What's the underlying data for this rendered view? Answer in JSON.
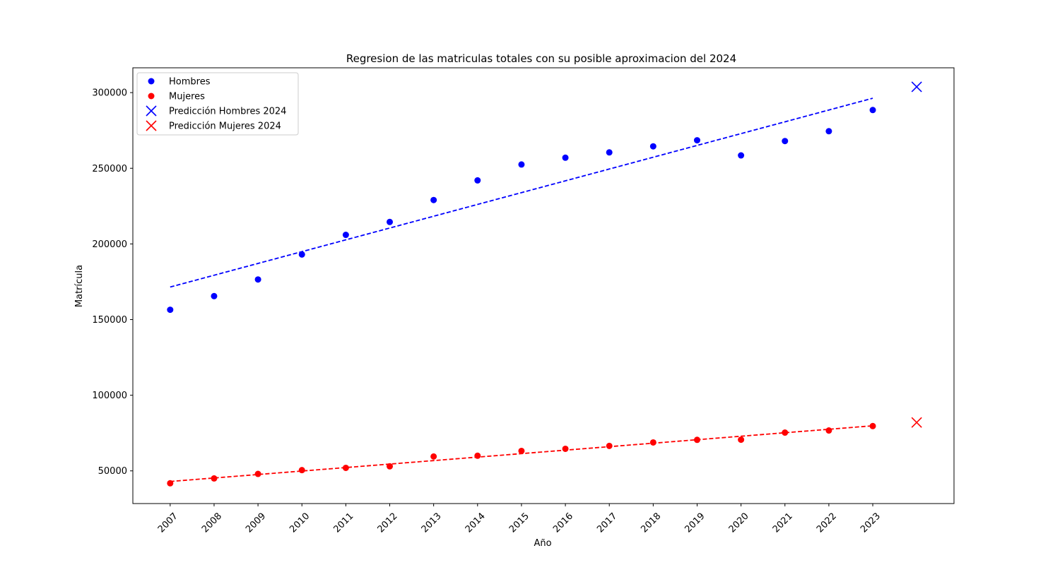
{
  "chart_data": {
    "type": "scatter",
    "title": "Regresion de las matriculas totales con su posible aproximacion del 2024",
    "xlabel": "Año",
    "ylabel": "Matrícula",
    "x_ticks": [
      "2007",
      "2008",
      "2009",
      "2010",
      "2011",
      "2012",
      "2013",
      "2014",
      "2015",
      "2016",
      "2017",
      "2018",
      "2019",
      "2020",
      "2021",
      "2022",
      "2023"
    ],
    "y_ticks": [
      50000,
      100000,
      150000,
      200000,
      250000,
      300000
    ],
    "xlim": [
      2006.15,
      2024.85
    ],
    "ylim": [
      28400,
      316400
    ],
    "grid": false,
    "legend_position": "top-left",
    "x": [
      2007,
      2008,
      2009,
      2010,
      2011,
      2012,
      2013,
      2014,
      2015,
      2016,
      2017,
      2018,
      2019,
      2020,
      2021,
      2022,
      2023
    ],
    "series": [
      {
        "name": "Hombres",
        "color": "#0000ff",
        "values": [
          156500,
          165500,
          176500,
          193000,
          206000,
          214500,
          229000,
          242000,
          252500,
          257000,
          260500,
          264500,
          268500,
          258500,
          268000,
          274500,
          288500
        ],
        "trend_start": [
          2007,
          171500
        ],
        "trend_end": [
          2023,
          296300
        ],
        "prediction_name": "Predicción Hombres 2024",
        "prediction": [
          2024,
          303800
        ]
      },
      {
        "name": "Mujeres",
        "color": "#ff0000",
        "values": [
          41800,
          45000,
          48000,
          50500,
          52000,
          53000,
          59500,
          60000,
          63200,
          64600,
          66500,
          68800,
          70500,
          70600,
          75300,
          76700,
          79600
        ],
        "trend_start": [
          2007,
          43000
        ],
        "trend_end": [
          2023,
          79800
        ],
        "prediction_name": "Predicción Mujeres 2024",
        "prediction": [
          2024,
          82000
        ]
      }
    ]
  }
}
